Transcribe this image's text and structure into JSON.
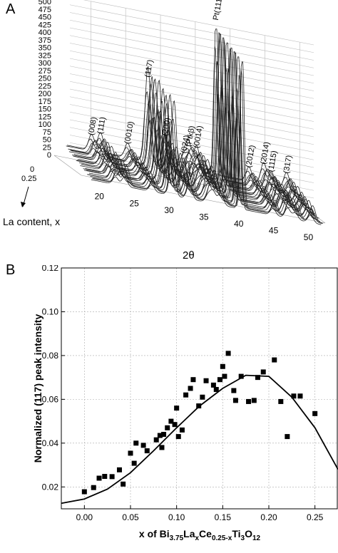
{
  "panel_labels": [
    "A",
    "B"
  ],
  "chart_data": [
    {
      "type": "area",
      "panel": "A",
      "xlabel": "2θ",
      "zlabel": "La content, x",
      "x_ticks": [
        "20",
        "25",
        "30",
        "35",
        "40",
        "45",
        "50"
      ],
      "y_ticks": [
        "0",
        "25",
        "50",
        "75",
        "100",
        "125",
        "150",
        "175",
        "200",
        "225",
        "250",
        "275",
        "300",
        "325",
        "350",
        "375",
        "400",
        "425",
        "450",
        "475",
        "500"
      ],
      "z_ticks": [
        "0",
        "0.25"
      ],
      "xlim": [
        17,
        52
      ],
      "ylim": [
        0,
        500
      ],
      "zlim": [
        0,
        0.25
      ],
      "grid": true,
      "peaks": [
        {
          "label": "(008)",
          "x": 22.0,
          "y": 45
        },
        {
          "label": "(111)",
          "x": 23.3,
          "y": 55
        },
        {
          "label": "(0010)",
          "x": 27.2,
          "y": 40
        },
        {
          "label": "(117)",
          "x": 30.1,
          "y": 270
        },
        {
          "label": "(200)",
          "x": 32.6,
          "y": 90
        },
        {
          "label": "(024)",
          "x": 35.3,
          "y": 45
        },
        {
          "label": "(Ptkβ)",
          "x": 36.0,
          "y": 70
        },
        {
          "label": "(0014)",
          "x": 37.1,
          "y": 70
        },
        {
          "label": "Pt(111)",
          "x": 39.9,
          "y": 500
        },
        {
          "label": "(2012)",
          "x": 44.6,
          "y": 40
        },
        {
          "label": "(2014)",
          "x": 46.7,
          "y": 60
        },
        {
          "label": "(1115)",
          "x": 47.8,
          "y": 40
        },
        {
          "label": "(317)",
          "x": 50.0,
          "y": 45
        }
      ]
    },
    {
      "type": "scatter",
      "panel": "B",
      "xlabel": "x of Bi3.75LaxCe0.25-xTi3O12",
      "xlabel_parts": {
        "p1": "x of Bi",
        "s1": "3.75",
        "p2": "La",
        "s2": "x",
        "p3": "Ce",
        "s3": "0.25-x",
        "p4": "Ti",
        "s4": "3",
        "p5": "O",
        "s5": "12"
      },
      "ylabel": "Normalized (117) peak intensity",
      "xlim": [
        -0.025,
        0.275
      ],
      "ylim": [
        0.01,
        0.12
      ],
      "x_ticks": [
        "0.00",
        "0.05",
        "0.10",
        "0.15",
        "0.20",
        "0.25"
      ],
      "y_ticks": [
        "0.02",
        "0.04",
        "0.06",
        "0.08",
        "0.10",
        "0.12"
      ],
      "grid": true,
      "points": [
        [
          0.0,
          0.0178
        ],
        [
          0.01,
          0.0197
        ],
        [
          0.016,
          0.024
        ],
        [
          0.022,
          0.0248
        ],
        [
          0.03,
          0.0247
        ],
        [
          0.038,
          0.0278
        ],
        [
          0.042,
          0.0213
        ],
        [
          0.05,
          0.0354
        ],
        [
          0.054,
          0.0308
        ],
        [
          0.056,
          0.04
        ],
        [
          0.064,
          0.039
        ],
        [
          0.068,
          0.0365
        ],
        [
          0.078,
          0.0415
        ],
        [
          0.082,
          0.0435
        ],
        [
          0.084,
          0.038
        ],
        [
          0.086,
          0.044
        ],
        [
          0.09,
          0.047
        ],
        [
          0.094,
          0.05
        ],
        [
          0.098,
          0.0485
        ],
        [
          0.1,
          0.056
        ],
        [
          0.102,
          0.043
        ],
        [
          0.106,
          0.046
        ],
        [
          0.11,
          0.062
        ],
        [
          0.115,
          0.065
        ],
        [
          0.118,
          0.069
        ],
        [
          0.124,
          0.057
        ],
        [
          0.128,
          0.061
        ],
        [
          0.132,
          0.0685
        ],
        [
          0.14,
          0.0665
        ],
        [
          0.143,
          0.0645
        ],
        [
          0.147,
          0.069
        ],
        [
          0.15,
          0.075
        ],
        [
          0.152,
          0.0705
        ],
        [
          0.156,
          0.081
        ],
        [
          0.162,
          0.064
        ],
        [
          0.164,
          0.0595
        ],
        [
          0.17,
          0.0705
        ],
        [
          0.178,
          0.059
        ],
        [
          0.184,
          0.0595
        ],
        [
          0.188,
          0.07
        ],
        [
          0.194,
          0.0725
        ],
        [
          0.206,
          0.078
        ],
        [
          0.213,
          0.059
        ],
        [
          0.22,
          0.043
        ],
        [
          0.227,
          0.0615
        ],
        [
          0.234,
          0.0615
        ],
        [
          0.25,
          0.0535
        ]
      ],
      "fit_curve": {
        "x": [
          -0.025,
          0.0,
          0.025,
          0.05,
          0.075,
          0.1,
          0.125,
          0.15,
          0.175,
          0.2,
          0.225,
          0.25,
          0.275
        ],
        "y": [
          0.0125,
          0.0145,
          0.019,
          0.0265,
          0.0365,
          0.047,
          0.057,
          0.065,
          0.071,
          0.0705,
          0.061,
          0.047,
          0.028
        ]
      }
    }
  ]
}
